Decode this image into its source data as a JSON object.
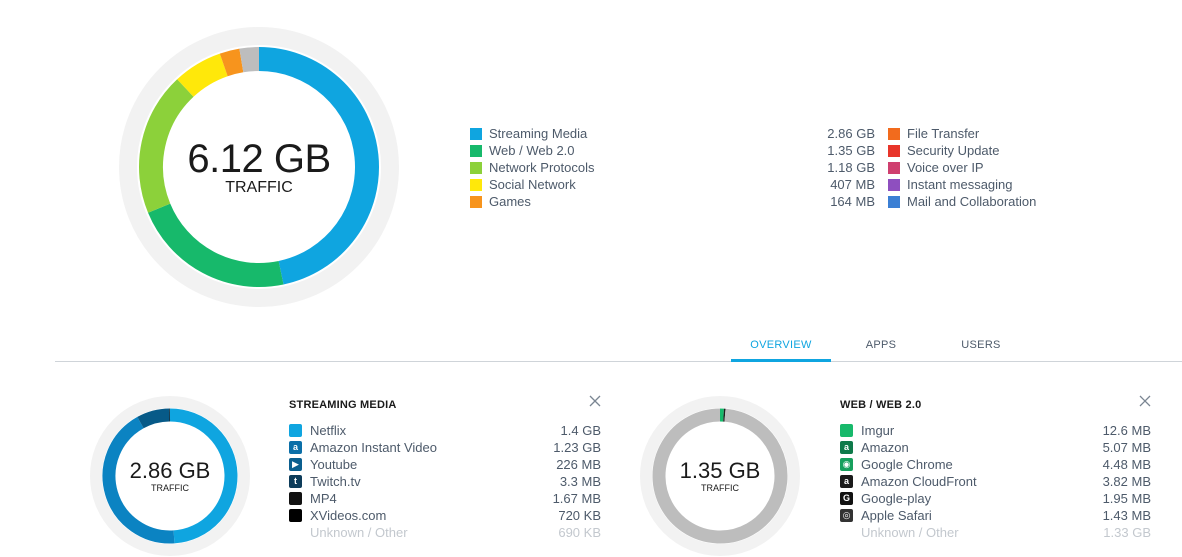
{
  "summary": {
    "total": "6.12 GB",
    "total_label": "TRAFFIC",
    "ring_colors": [
      "#0fa5e0",
      "#17b96b",
      "#8cd13a",
      "#ffe80a",
      "#f7941d",
      "#bdbdbd"
    ],
    "ring_values": [
      2.86,
      1.35,
      1.18,
      0.407,
      0.164,
      0.16
    ]
  },
  "legend_left": [
    {
      "name": "Streaming Media",
      "value": "2.86 GB",
      "color": "#0fa5e0"
    },
    {
      "name": "Web / Web 2.0",
      "value": "1.35 GB",
      "color": "#17b96b"
    },
    {
      "name": "Network Protocols",
      "value": "1.18 GB",
      "color": "#8cd13a"
    },
    {
      "name": "Social Network",
      "value": "407 MB",
      "color": "#ffe80a"
    },
    {
      "name": "Games",
      "value": "164 MB",
      "color": "#f7941d"
    }
  ],
  "legend_right": [
    {
      "name": "File Transfer",
      "color": "#f26b1d"
    },
    {
      "name": "Security Update",
      "color": "#e8352a"
    },
    {
      "name": "Voice over IP",
      "color": "#cf3f6f"
    },
    {
      "name": "Instant messaging",
      "color": "#8e4fbf"
    },
    {
      "name": "Mail and Collaboration",
      "color": "#3b7fd4"
    }
  ],
  "tabs": [
    {
      "label": "OVERVIEW",
      "active": true
    },
    {
      "label": "APPS",
      "active": false
    },
    {
      "label": "USERS",
      "active": false
    }
  ],
  "cards": [
    {
      "title": "STREAMING MEDIA",
      "total": "2.86 GB",
      "total_label": "TRAFFIC",
      "ring_colors": [
        "#0fa5e0",
        "#0b83c2",
        "#075a88",
        "#1e1e1e"
      ],
      "ring_values": [
        1.4,
        1.23,
        0.226,
        0.004
      ],
      "items": [
        {
          "name": "Netflix",
          "value": "1.4 GB",
          "icon": "netflix-icon",
          "color": "#0fa5e0",
          "glyph": ""
        },
        {
          "name": "Amazon Instant Video",
          "value": "1.23 GB",
          "icon": "amazon-icon",
          "color": "#0b6fa8",
          "glyph": "a"
        },
        {
          "name": "Youtube",
          "value": "226 MB",
          "icon": "youtube-icon",
          "color": "#0b5f8f",
          "glyph": "▶"
        },
        {
          "name": "Twitch.tv",
          "value": "3.3 MB",
          "icon": "twitch-icon",
          "color": "#0d3c5a",
          "glyph": "t"
        },
        {
          "name": "MP4",
          "value": "1.67 MB",
          "icon": "mp4-icon",
          "color": "#111111",
          "glyph": ""
        },
        {
          "name": "XVideos.com",
          "value": "720 KB",
          "icon": "xvideos-icon",
          "color": "#000000",
          "glyph": ""
        },
        {
          "name": "Unknown / Other",
          "value": "690 KB",
          "icon": "",
          "color": "",
          "glyph": "",
          "muted": true
        }
      ]
    },
    {
      "title": "WEB / WEB 2.0",
      "total": "1.35 GB",
      "total_label": "TRAFFIC",
      "ring_colors": [
        "#17b96b",
        "#1e1e1e",
        "#bdbdbd"
      ],
      "ring_values": [
        0.0126,
        0.00507,
        1.3323
      ],
      "items": [
        {
          "name": "Imgur",
          "value": "12.6 MB",
          "icon": "imgur-icon",
          "color": "#17b96b",
          "glyph": ""
        },
        {
          "name": "Amazon",
          "value": "5.07 MB",
          "icon": "amazon-icon",
          "color": "#0e7a4a",
          "glyph": "a"
        },
        {
          "name": "Google Chrome",
          "value": "4.48 MB",
          "icon": "chrome-icon",
          "color": "#17a05d",
          "glyph": "◉"
        },
        {
          "name": "Amazon CloudFront",
          "value": "3.82 MB",
          "icon": "cloudfront-icon",
          "color": "#1a1a1a",
          "glyph": "a"
        },
        {
          "name": "Google-play",
          "value": "1.95 MB",
          "icon": "google-play-icon",
          "color": "#111111",
          "glyph": "G"
        },
        {
          "name": "Apple Safari",
          "value": "1.43 MB",
          "icon": "safari-icon",
          "color": "#333333",
          "glyph": "◎"
        },
        {
          "name": "Unknown / Other",
          "value": "1.33 GB",
          "icon": "",
          "color": "",
          "glyph": "",
          "muted": true
        }
      ]
    }
  ]
}
